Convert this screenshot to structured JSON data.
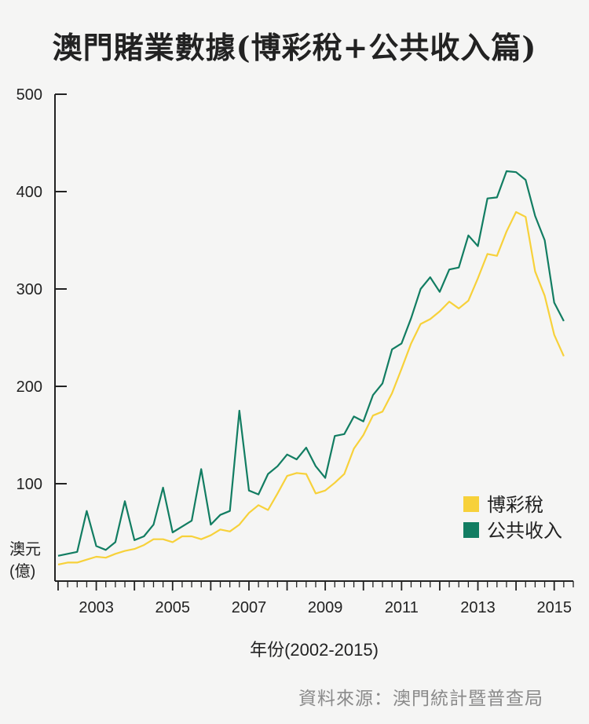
{
  "title": "澳門賭業數據(博彩稅+公共收入篇)",
  "source": "資料來源：澳門統計暨普查局",
  "chart_data": {
    "type": "line",
    "ylabel": "澳元\n(億)",
    "ylabel_lines": [
      "澳元",
      "(億)"
    ],
    "xlabel": "年份(2002-2015)",
    "ylim": [
      0,
      500
    ],
    "yticks": [
      100,
      200,
      300,
      400,
      500
    ],
    "xlim": [
      2002,
      2015.5
    ],
    "xtick_labels": [
      "2003",
      "2005",
      "2007",
      "2009",
      "2011",
      "2013",
      "2015"
    ],
    "xtick_values": [
      2003,
      2005,
      2007,
      2009,
      2011,
      2013,
      2015
    ],
    "legend_position": "right",
    "grid": false,
    "x": [
      2002.0,
      2002.25,
      2002.5,
      2002.75,
      2003.0,
      2003.25,
      2003.5,
      2003.75,
      2004.0,
      2004.25,
      2004.5,
      2004.75,
      2005.0,
      2005.25,
      2005.5,
      2005.75,
      2006.0,
      2006.25,
      2006.5,
      2006.75,
      2007.0,
      2007.25,
      2007.5,
      2007.75,
      2008.0,
      2008.25,
      2008.5,
      2008.75,
      2009.0,
      2009.25,
      2009.5,
      2009.75,
      2010.0,
      2010.25,
      2010.5,
      2010.75,
      2011.0,
      2011.25,
      2011.5,
      2011.75,
      2012.0,
      2012.25,
      2012.5,
      2012.75,
      2013.0,
      2013.25,
      2013.5,
      2013.75,
      2014.0,
      2014.25,
      2014.5,
      2014.75,
      2015.0,
      2015.25
    ],
    "series": [
      {
        "name": "博彩稅",
        "color": "#f7d13a",
        "values": [
          17,
          19,
          19,
          22,
          25,
          24,
          28,
          31,
          33,
          37,
          43,
          43,
          40,
          46,
          46,
          43,
          47,
          53,
          51,
          58,
          70,
          78,
          73,
          90,
          108,
          111,
          110,
          90,
          93,
          101,
          110,
          136,
          150,
          170,
          174,
          193,
          218,
          244,
          264,
          269,
          277,
          287,
          280,
          288,
          311,
          336,
          334,
          359,
          379,
          374,
          318,
          293,
          253,
          231
        ]
      },
      {
        "name": "公共收入",
        "color": "#127d62",
        "values": [
          26,
          28,
          30,
          72,
          36,
          32,
          40,
          82,
          42,
          46,
          58,
          96,
          50,
          56,
          62,
          115,
          58,
          68,
          72,
          175,
          93,
          89,
          110,
          118,
          130,
          125,
          137,
          118,
          106,
          149,
          151,
          169,
          164,
          191,
          203,
          238,
          244,
          270,
          300,
          312,
          297,
          320,
          322,
          355,
          344,
          393,
          394,
          421,
          420,
          412,
          375,
          350,
          286,
          267
        ]
      }
    ]
  }
}
